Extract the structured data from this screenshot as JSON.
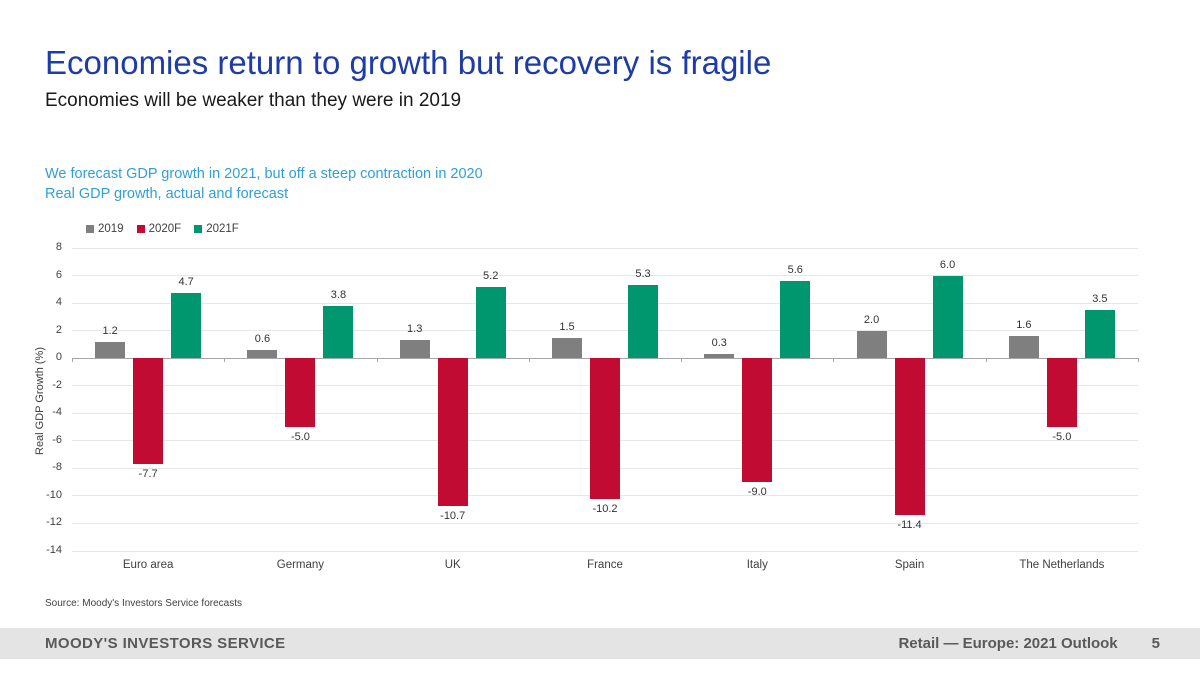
{
  "slide": {
    "title": "Economies return to growth but recovery is fragile",
    "subtitle": "Economies will be weaker than they were in 2019",
    "chart_kicker_line1": "We forecast GDP growth in 2021, but off a steep contraction in 2020",
    "chart_kicker_line2": "Real GDP growth, actual and forecast",
    "source": "Source: Moody's Investors Service forecasts",
    "footer": {
      "brand": "MOODY'S INVESTORS SERVICE",
      "report_title": "Retail — Europe: 2021 Outlook",
      "page_number": "5"
    }
  },
  "colors": {
    "title_blue": "#1e3ca8",
    "kicker_light_blue": "#2f9fd6",
    "series_2019": "#7f7f7f",
    "series_2020F": "#c10b33",
    "series_2021F": "#00966e",
    "gridline": "#e7e7e7",
    "zero_line": "#a6a6a6",
    "footer_bg": "#e4e4e4",
    "footer_text": "#595959"
  },
  "chart_data": {
    "type": "bar",
    "title": "Real GDP growth, actual and forecast",
    "subtitle": "We forecast GDP growth in 2021, but off a steep contraction in 2020",
    "categories": [
      "Euro area",
      "Germany",
      "UK",
      "France",
      "Italy",
      "Spain",
      "The Netherlands"
    ],
    "series": [
      {
        "name": "2019",
        "color_key": "series_2019",
        "values": [
          1.2,
          0.6,
          1.3,
          1.5,
          0.3,
          2.0,
          1.6
        ]
      },
      {
        "name": "2020F",
        "color_key": "series_2020F",
        "values": [
          -7.7,
          -5.0,
          -10.7,
          -10.2,
          -9.0,
          -11.4,
          -5.0
        ]
      },
      {
        "name": "2021F",
        "color_key": "series_2021F",
        "values": [
          4.7,
          3.8,
          5.2,
          5.3,
          5.6,
          6.0,
          3.5
        ]
      }
    ],
    "xlabel": "",
    "ylabel": "Real GDP Growth (%)",
    "ylim": [
      -14,
      8
    ],
    "ytick_step": 2,
    "grid": true,
    "value_labels_decimals": 1,
    "legend_position": "top-left"
  }
}
